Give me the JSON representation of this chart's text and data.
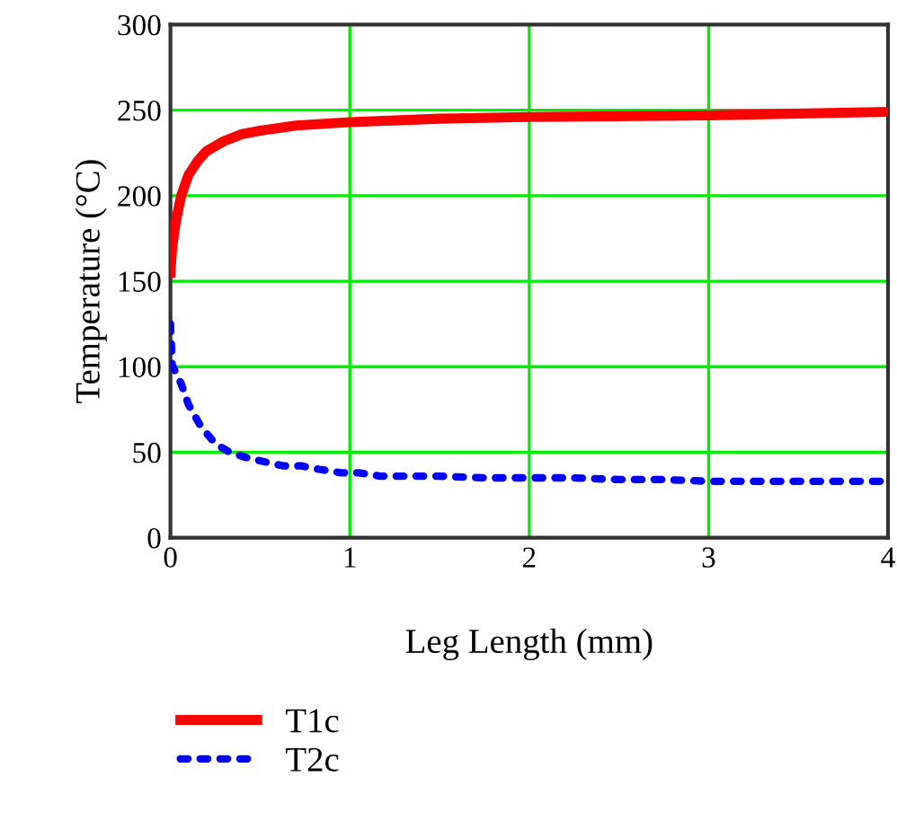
{
  "chart_data": {
    "type": "line",
    "xlabel": "Leg Length (mm)",
    "ylabel": "Temperature (°C)",
    "xlim": [
      0,
      4
    ],
    "xticks": [
      0,
      1,
      2,
      3,
      4
    ],
    "ylim": [
      0,
      300
    ],
    "yticks": [
      0,
      50,
      100,
      150,
      200,
      250,
      300
    ],
    "grid": true,
    "legend": "bottom left",
    "series": [
      {
        "name": "T1c",
        "color": "#ff0000",
        "line_style": "solid",
        "x": [
          0,
          0.01,
          0.03,
          0.06,
          0.1,
          0.15,
          0.2,
          0.3,
          0.4,
          0.5,
          0.7,
          1,
          1.5,
          2,
          3,
          4
        ],
        "values": [
          155,
          170,
          185,
          200,
          212,
          220,
          226,
          232,
          236,
          238,
          241,
          243,
          245,
          246,
          247,
          249
        ]
      },
      {
        "name": "T2c",
        "color": "#0000ff",
        "line_style": "dotted",
        "x": [
          0,
          0.005,
          0.01,
          0.06,
          0.1,
          0.17,
          0.25,
          0.33,
          0.42,
          0.5,
          0.63,
          0.73,
          0.83,
          0.95,
          1.05,
          1.17,
          1.28,
          1.4,
          1.5,
          1.75,
          2,
          2.25,
          2.5,
          2.75,
          3,
          3.25,
          3.5,
          3.75,
          4
        ],
        "values": [
          125,
          113,
          101,
          90,
          78,
          65,
          55,
          50,
          47,
          45,
          42,
          42,
          40,
          38,
          38,
          36,
          36,
          36,
          36,
          35,
          35,
          35,
          34,
          34,
          33,
          33,
          33,
          33,
          33
        ]
      }
    ]
  }
}
